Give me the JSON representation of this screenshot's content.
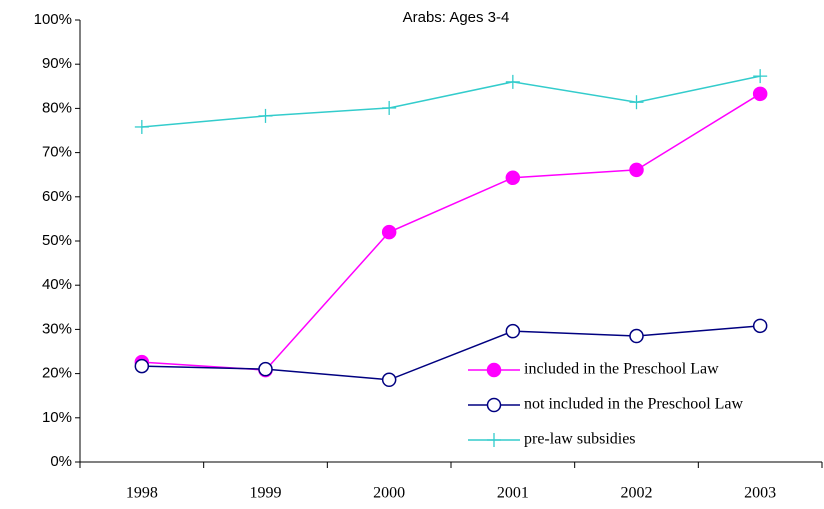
{
  "chart_data": {
    "type": "line",
    "title": "Arabs: Ages 3-4",
    "categories": [
      "1998",
      "1999",
      "2000",
      "2001",
      "2002",
      "2003"
    ],
    "series": [
      {
        "name": "included in the Preschool Law",
        "color": "#ff00ff",
        "marker": "filled-circle",
        "values": [
          22.6,
          20.8,
          52.0,
          64.3,
          66.1,
          83.3
        ]
      },
      {
        "name": "not included in the Preschool Law",
        "color": "#000080",
        "marker": "open-circle",
        "values": [
          21.7,
          21.0,
          18.6,
          29.6,
          28.5,
          30.8
        ]
      },
      {
        "name": "pre-law subsidies",
        "color": "#33cccc",
        "marker": "plus",
        "values": [
          75.8,
          78.3,
          80.1,
          86.0,
          81.4,
          87.3
        ]
      }
    ],
    "ylim": [
      0,
      100
    ],
    "yticks": [
      {
        "value": 0,
        "label": "0%"
      },
      {
        "value": 10,
        "label": "10%"
      },
      {
        "value": 20,
        "label": "20%"
      },
      {
        "value": 30,
        "label": "30%"
      },
      {
        "value": 40,
        "label": "40%"
      },
      {
        "value": 50,
        "label": "50%"
      },
      {
        "value": 60,
        "label": "60%"
      },
      {
        "value": 70,
        "label": "70%"
      },
      {
        "value": 80,
        "label": "80%"
      },
      {
        "value": 90,
        "label": "90%"
      },
      {
        "value": 100,
        "label": "100%"
      }
    ],
    "grid": false,
    "legend": "lower-right"
  }
}
